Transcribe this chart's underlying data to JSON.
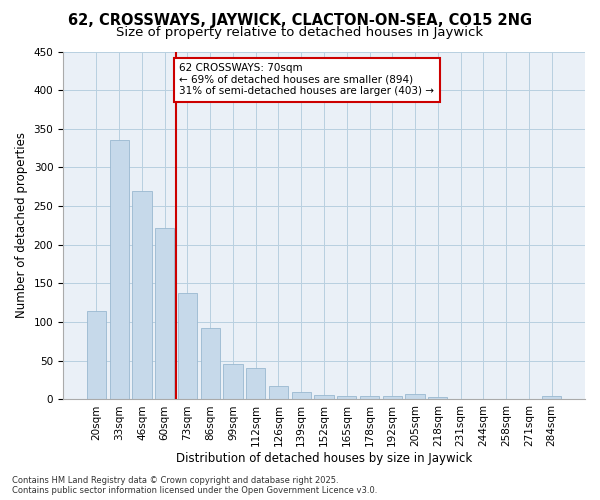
{
  "title": "62, CROSSWAYS, JAYWICK, CLACTON-ON-SEA, CO15 2NG",
  "subtitle": "Size of property relative to detached houses in Jaywick",
  "xlabel": "Distribution of detached houses by size in Jaywick",
  "ylabel": "Number of detached properties",
  "categories": [
    "20sqm",
    "33sqm",
    "46sqm",
    "60sqm",
    "73sqm",
    "86sqm",
    "99sqm",
    "112sqm",
    "126sqm",
    "139sqm",
    "152sqm",
    "165sqm",
    "178sqm",
    "192sqm",
    "205sqm",
    "218sqm",
    "231sqm",
    "244sqm",
    "258sqm",
    "271sqm",
    "284sqm"
  ],
  "values": [
    115,
    335,
    270,
    222,
    138,
    93,
    46,
    41,
    18,
    10,
    6,
    5,
    5,
    5,
    7,
    3,
    0,
    0,
    0,
    0,
    4
  ],
  "bar_color": "#c6d9ea",
  "bar_edge_color": "#9ab8d0",
  "vline_x_index": 3.5,
  "vline_color": "#cc0000",
  "annotation_text": "62 CROSSWAYS: 70sqm\n← 69% of detached houses are smaller (894)\n31% of semi-detached houses are larger (403) →",
  "annotation_box_edgecolor": "#cc0000",
  "annotation_box_facecolor": "#ffffff",
  "ylim": [
    0,
    450
  ],
  "yticks": [
    0,
    50,
    100,
    150,
    200,
    250,
    300,
    350,
    400,
    450
  ],
  "grid_color": "#b8cfe0",
  "background_color": "#eaf0f7",
  "footer_text": "Contains HM Land Registry data © Crown copyright and database right 2025.\nContains public sector information licensed under the Open Government Licence v3.0.",
  "title_fontsize": 10.5,
  "subtitle_fontsize": 9.5,
  "xlabel_fontsize": 8.5,
  "ylabel_fontsize": 8.5,
  "tick_fontsize": 7.5,
  "footer_fontsize": 6.0,
  "annotation_fontsize": 7.5
}
